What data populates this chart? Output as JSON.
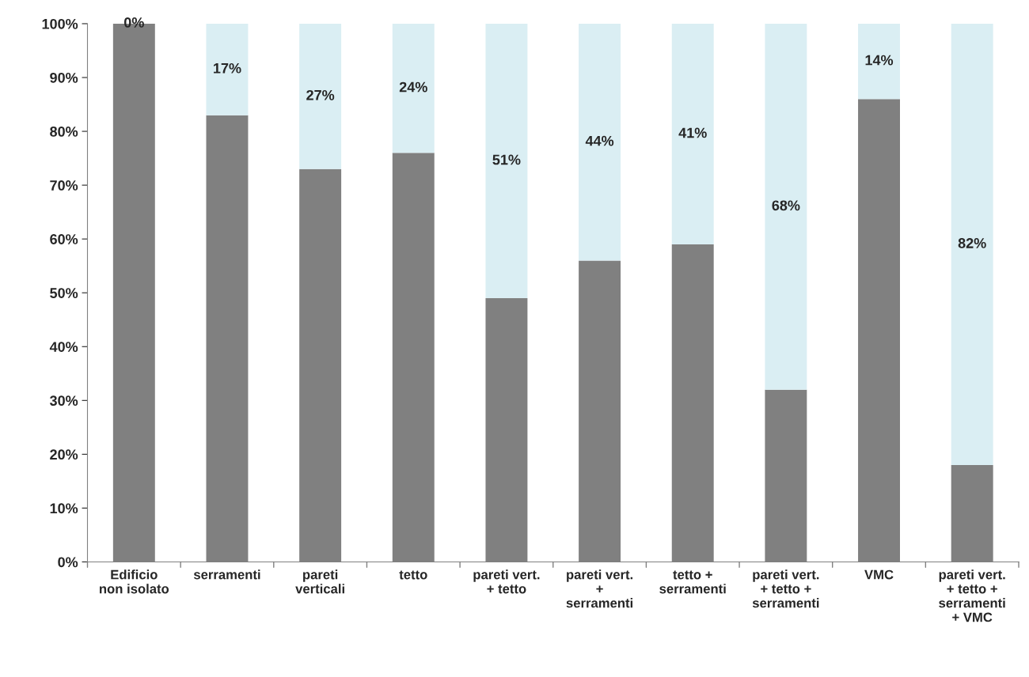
{
  "chart_data": {
    "type": "bar",
    "stacked": true,
    "categories": [
      "Edificio\nnon isolato",
      "serramenti",
      "pareti\nverticali",
      "tetto",
      "pareti vert.\n+ tetto",
      "pareti vert.\n+\nserramenti",
      "tetto +\nserramenti",
      "pareti vert.\n+ tetto +\nserramenti",
      "VMC",
      "pareti vert.\n+ tetto +\nserramenti\n+ VMC"
    ],
    "series": [
      {
        "color": "#808080",
        "values": [
          100,
          83,
          73,
          76,
          49,
          56,
          59,
          32,
          86,
          18
        ]
      },
      {
        "color": "#daeef3",
        "values": [
          0,
          17,
          27,
          24,
          51,
          44,
          41,
          68,
          14,
          82
        ],
        "value_labels": [
          "0%",
          "17%",
          "27%",
          "24%",
          "51%",
          "44%",
          "41%",
          "68%",
          "14%",
          "82%"
        ]
      }
    ],
    "ylim": [
      0,
      100
    ],
    "yticks": [
      {
        "value": 0,
        "label": "0%"
      },
      {
        "value": 10,
        "label": "10%"
      },
      {
        "value": 20,
        "label": "20%"
      },
      {
        "value": 30,
        "label": "30%"
      },
      {
        "value": 40,
        "label": "40%"
      },
      {
        "value": 50,
        "label": "50%"
      },
      {
        "value": 60,
        "label": "60%"
      },
      {
        "value": 70,
        "label": "70%"
      },
      {
        "value": 80,
        "label": "80%"
      },
      {
        "value": 90,
        "label": "90%"
      },
      {
        "value": 100,
        "label": "100%"
      }
    ],
    "grid": false,
    "legend": false
  }
}
